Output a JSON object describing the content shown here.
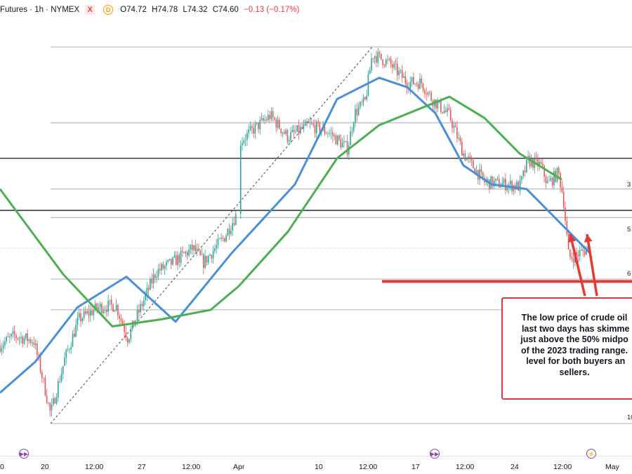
{
  "header": {
    "symbol": "Futures · 1h · NYMEX",
    "flag_x": "X",
    "flag_d": "D",
    "open": "O74.72",
    "high": "H74.78",
    "low": "L74.32",
    "close": "C74.60",
    "change": "−0.13 (−0.17%)"
  },
  "annotation": "The low price of crude oil\n last two days has skimme\njust above the 50% midpo\nof the 2023 trading range.\n level for both buyers an\nsellers.",
  "fib_labels": [
    "3",
    "5",
    "6",
    "10"
  ],
  "x_ticks": [
    "0",
    "20",
    "12:00",
    "27",
    "12:00",
    "Apr",
    "10",
    "12:00",
    "17",
    "12:00",
    "24",
    "12:00",
    "May"
  ],
  "nav_icons": [
    "forward-icon",
    "forward-icon",
    "lightning-icon"
  ],
  "colors": {
    "up": "#26a69a",
    "down": "#ef5350",
    "ma_fast": "#4a90d9",
    "ma_slow": "#4caf50",
    "annotation_red": "#e53935"
  },
  "chart_data": {
    "type": "line",
    "title": "",
    "xlabel": "",
    "ylabel": "",
    "x_axis": [
      "20",
      "27",
      "Apr",
      "10",
      "17",
      "24",
      "May"
    ],
    "series": [
      {
        "values": [
          68.5,
          69.8,
          72.1,
          73.4,
          71.5,
          74.4,
          77.3,
          80.9,
          81.8,
          81.4,
          80.3,
          78.1,
          77.3,
          77.1,
          74.4
        ]
      },
      {
        "values": [
          77.1,
          73.5,
          71.3,
          71.6,
          72.0,
          73.0,
          75.3,
          78.4,
          79.8,
          80.4,
          81.0,
          80.1,
          78.6,
          77.5
        ]
      },
      {
        "values": [
          76.2,
          72.6,
          70.9,
          71.0,
          72.5,
          74.6,
          77.2,
          79.6,
          80.7,
          80.8,
          80.5,
          79.6
        ]
      }
    ],
    "horizontal_levels": [
      78.4,
      76.2,
      75.9,
      74.6,
      73.3,
      67.2,
      83.1
    ],
    "grid": false
  }
}
